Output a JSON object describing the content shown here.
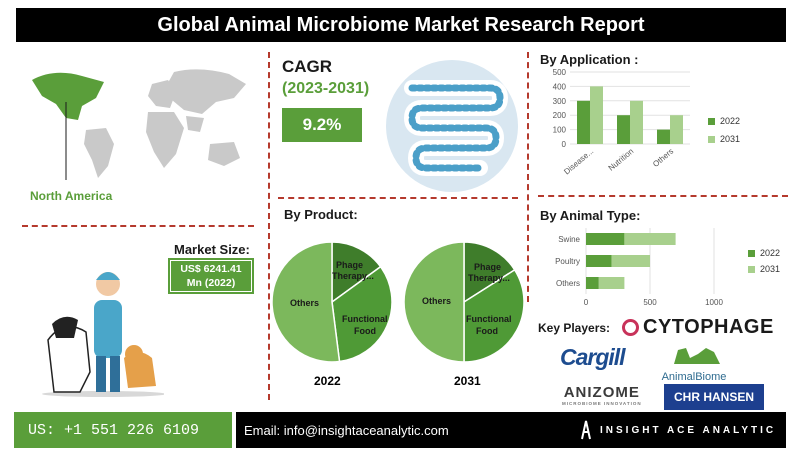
{
  "header": {
    "title": "Global Animal Microbiome Market Research Report"
  },
  "region": {
    "label": "North America"
  },
  "market_size": {
    "label": "Market Size:",
    "value_line1": "US$ 6241.41",
    "value_line2": "Mn (2022)"
  },
  "cagr": {
    "title": "CAGR",
    "years": "(2023-2031)",
    "value": "9.2%"
  },
  "product": {
    "title": "By Product:"
  },
  "application": {
    "title": "By Application :"
  },
  "animal": {
    "title": "By  Animal Type:"
  },
  "key_players": {
    "title": "Key Players:",
    "logos": [
      "CYTOPHAGE",
      "Cargill",
      "AnimalBiome",
      "ANIZOME",
      "CHR HANSEN"
    ],
    "anizome_tagline": "MICROBIOME INNOVATION"
  },
  "footer": {
    "phone": "US: +1 551 226 6109",
    "email": "Email: info@insightaceanalytic.com",
    "brand": "INSIGHT ACE ANALYTIC"
  },
  "colors": {
    "dark_green": "#5a9e3a",
    "light_green": "#a8d08d",
    "black": "#000000",
    "accent_red": "#b5392d"
  },
  "chart_data": [
    {
      "type": "bar",
      "title": "By Application :",
      "categories": [
        "Disease...",
        "Nutrition",
        "Others"
      ],
      "series": [
        {
          "name": "2022",
          "values": [
            300,
            200,
            100
          ],
          "color": "#5a9e3a"
        },
        {
          "name": "2031",
          "values": [
            400,
            300,
            200
          ],
          "color": "#a8d08d"
        }
      ],
      "ylim": [
        0,
        500
      ],
      "yticks": [
        0,
        100,
        200,
        300,
        400,
        500
      ],
      "grid": true,
      "legend": "right"
    },
    {
      "type": "bar",
      "orientation": "horizontal",
      "stacked": true,
      "title": "By  Animal Type:",
      "categories": [
        "Swine",
        "Poultry",
        "Others"
      ],
      "series": [
        {
          "name": "2022",
          "values": [
            300,
            200,
            100
          ],
          "color": "#5a9e3a"
        },
        {
          "name": "2031",
          "values": [
            400,
            300,
            200
          ],
          "color": "#a8d08d"
        }
      ],
      "xlim": [
        0,
        1000
      ],
      "xticks": [
        0,
        500,
        1000
      ],
      "grid": true,
      "legend": "right"
    },
    {
      "type": "pie",
      "title": "2022",
      "slices": [
        {
          "label": "Phage Therapy...",
          "value": 15,
          "color": "#3f7d2b"
        },
        {
          "label": "Functional Food",
          "value": 33,
          "color": "#4f9a36"
        },
        {
          "label": "Others",
          "value": 52,
          "color": "#7cb85c"
        }
      ]
    },
    {
      "type": "pie",
      "title": "2031",
      "slices": [
        {
          "label": "Phage Therapy...",
          "value": 16,
          "color": "#3f7d2b"
        },
        {
          "label": "Functional Food",
          "value": 34,
          "color": "#4f9a36"
        },
        {
          "label": "Others",
          "value": 50,
          "color": "#7cb85c"
        }
      ]
    }
  ]
}
